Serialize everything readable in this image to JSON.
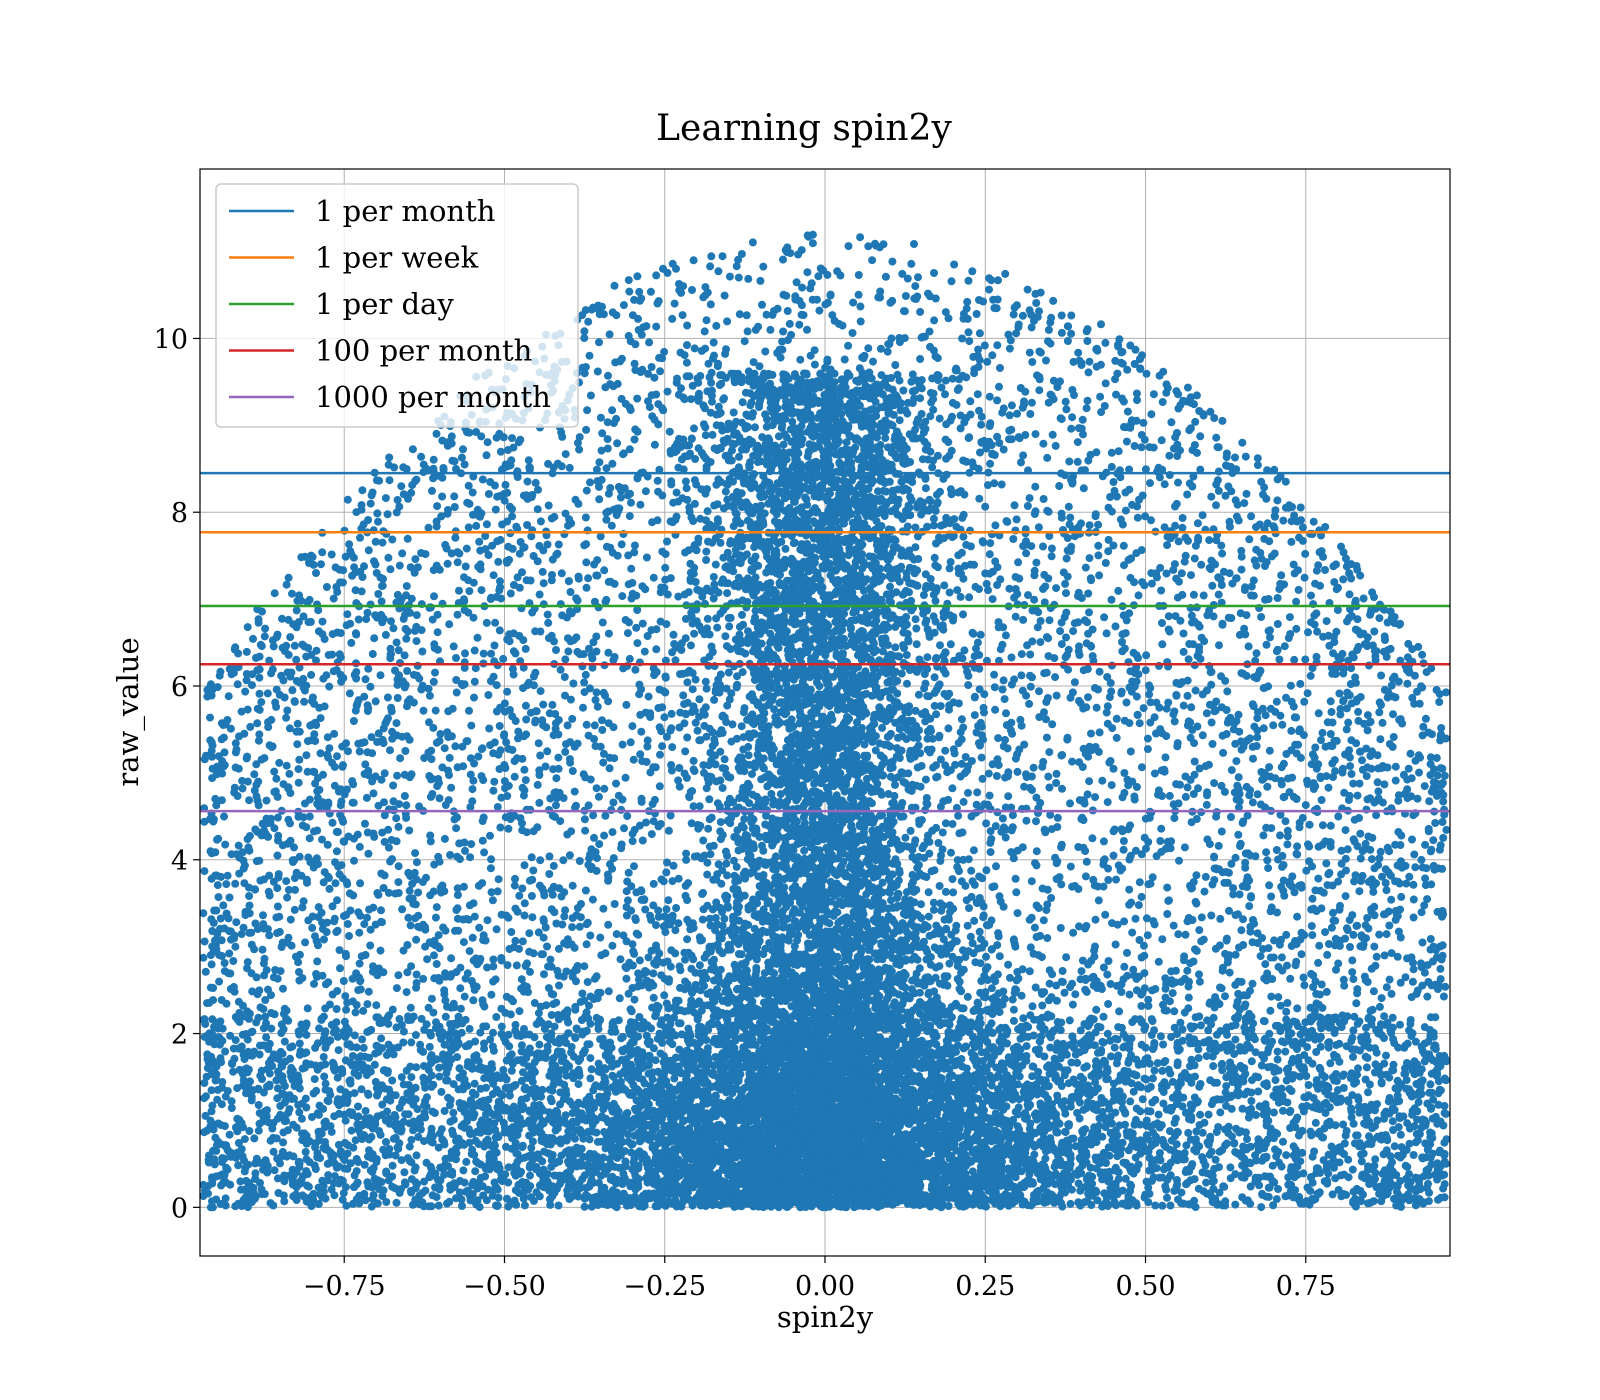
{
  "chart_data": {
    "type": "scatter",
    "title": "Learning spin2y",
    "xlabel": "spin2y",
    "ylabel": "raw_value",
    "xlim": [
      -0.975,
      0.975
    ],
    "ylim": [
      -0.56,
      11.95
    ],
    "xticks": [
      -0.75,
      -0.5,
      -0.25,
      0.0,
      0.25,
      0.5,
      0.75
    ],
    "xtick_labels": [
      "−0.75",
      "−0.50",
      "−0.25",
      "0.00",
      "0.25",
      "0.50",
      "0.75"
    ],
    "yticks": [
      0,
      2,
      4,
      6,
      8,
      10
    ],
    "ytick_labels": [
      "0",
      "2",
      "4",
      "6",
      "8",
      "10"
    ],
    "grid": true,
    "legend_position": "top-left",
    "scatter_color": "#1f77b4",
    "scatter_points_approx": 20000,
    "scatter_distribution": {
      "x_range": [
        -0.97,
        0.97
      ],
      "y_range": [
        0,
        11.4
      ],
      "dense_near": "x≈0, y≈0 to 9"
    },
    "reference_lines": [
      {
        "name": "1 per month",
        "y": 8.45,
        "color": "#1f77b4"
      },
      {
        "name": "1 per week",
        "y": 7.77,
        "color": "#ff7f0e"
      },
      {
        "name": "1 per day",
        "y": 6.92,
        "color": "#2ca02c"
      },
      {
        "name": "100 per month",
        "y": 6.25,
        "color": "#d62728"
      },
      {
        "name": "1000 per month",
        "y": 4.56,
        "color": "#9467bd"
      }
    ]
  }
}
